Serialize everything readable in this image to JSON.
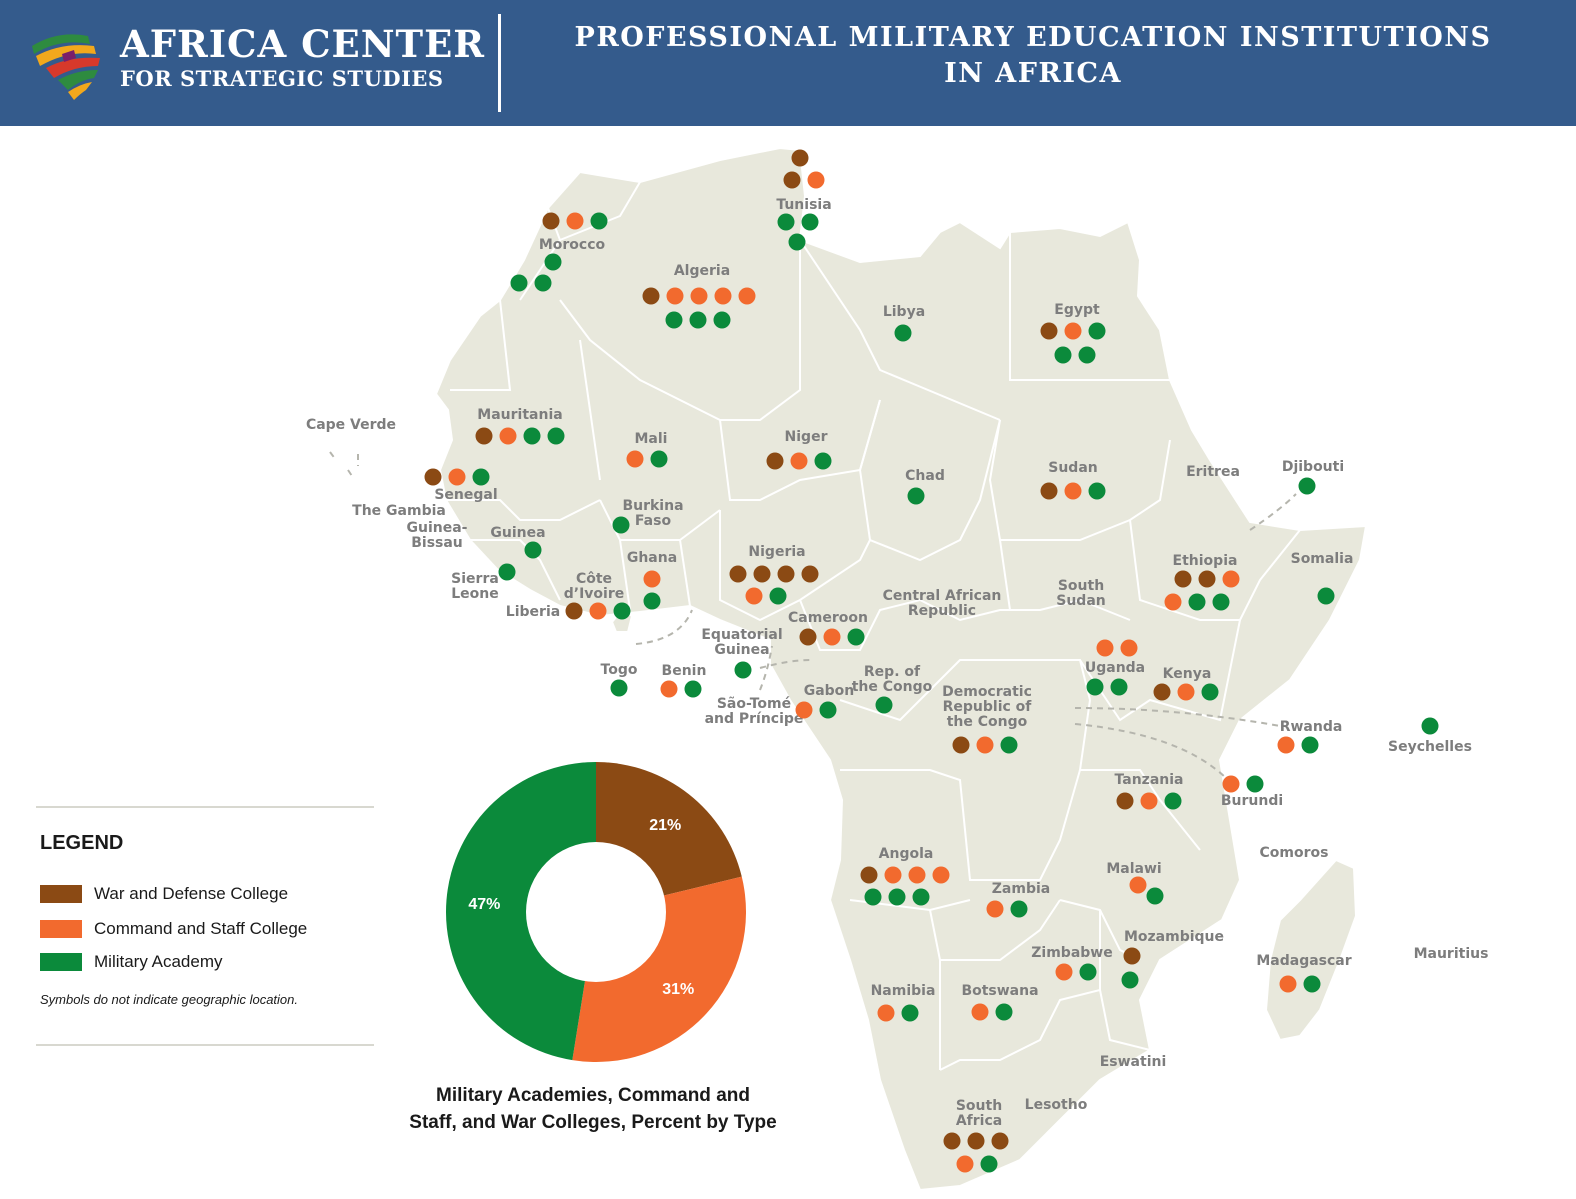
{
  "header": {
    "org_line1": "AFRICA CENTER",
    "org_line2": "FOR STRATEGIC STUDIES",
    "title_line1": "PROFESSIONAL MILITARY EDUCATION INSTITUTIONS",
    "title_line2": "IN AFRICA",
    "logo_icon": "africa-stripes-logo-icon"
  },
  "colors": {
    "header_bg": "#345b8c",
    "land": "#e8e8dc",
    "war_college": "#8b4a14",
    "staff_college": "#f26a2e",
    "academy": "#0b8a3b"
  },
  "legend": {
    "title": "LEGEND",
    "items": [
      {
        "key": "war",
        "label": "War and Defense College",
        "color": "#8b4a14"
      },
      {
        "key": "staff",
        "label": "Command and Staff College",
        "color": "#f26a2e"
      },
      {
        "key": "academy",
        "label": "Military Academy",
        "color": "#0b8a3b"
      }
    ],
    "note": "Symbols do not indicate geographic location."
  },
  "chart_data": {
    "type": "pie",
    "title": "Military Academies, Command and Staff, and War Colleges, Percent by Type",
    "categories": [
      "War and Defense College",
      "Command and Staff College",
      "Military Academy"
    ],
    "values": [
      21,
      31,
      47
    ],
    "labels": [
      "21%",
      "31%",
      "47%"
    ],
    "colors": [
      "#8b4a14",
      "#f26a2e",
      "#0b8a3b"
    ],
    "donut": true
  },
  "donut_caption": {
    "line1": "Military Academies, Command and",
    "line2": "Staff, and War Colleges, Percent by Type"
  },
  "countries": [
    {
      "name": "Tunisia",
      "w": 2,
      "s": 1,
      "a": 3
    },
    {
      "name": "Morocco",
      "w": 1,
      "s": 1,
      "a": 4
    },
    {
      "name": "Algeria",
      "w": 1,
      "s": 4,
      "a": 3
    },
    {
      "name": "Libya",
      "w": 0,
      "s": 0,
      "a": 1
    },
    {
      "name": "Egypt",
      "w": 1,
      "s": 1,
      "a": 3
    },
    {
      "name": "Mauritania",
      "w": 1,
      "s": 1,
      "a": 2
    },
    {
      "name": "Cape Verde",
      "w": 0,
      "s": 0,
      "a": 0
    },
    {
      "name": "Mali",
      "w": 0,
      "s": 1,
      "a": 1
    },
    {
      "name": "Niger",
      "w": 1,
      "s": 1,
      "a": 1
    },
    {
      "name": "Chad",
      "w": 0,
      "s": 0,
      "a": 1
    },
    {
      "name": "Sudan",
      "w": 1,
      "s": 1,
      "a": 1
    },
    {
      "name": "Eritrea",
      "w": 0,
      "s": 0,
      "a": 0
    },
    {
      "name": "Djibouti",
      "w": 0,
      "s": 0,
      "a": 1
    },
    {
      "name": "Senegal",
      "w": 1,
      "s": 1,
      "a": 1
    },
    {
      "name": "The Gambia",
      "w": 0,
      "s": 0,
      "a": 0
    },
    {
      "name": "Guinea-Bissau",
      "w": 0,
      "s": 0,
      "a": 0
    },
    {
      "name": "Guinea",
      "w": 0,
      "s": 0,
      "a": 1
    },
    {
      "name": "Sierra Leone",
      "w": 0,
      "s": 0,
      "a": 1
    },
    {
      "name": "Liberia",
      "w": 0,
      "s": 0,
      "a": 0
    },
    {
      "name": "Burkina Faso",
      "w": 0,
      "s": 0,
      "a": 1
    },
    {
      "name": "Côte d'Ivoire",
      "w": 1,
      "s": 1,
      "a": 1
    },
    {
      "name": "Ghana",
      "w": 0,
      "s": 1,
      "a": 1
    },
    {
      "name": "Togo",
      "w": 0,
      "s": 0,
      "a": 1
    },
    {
      "name": "Benin",
      "w": 0,
      "s": 1,
      "a": 1
    },
    {
      "name": "Nigeria",
      "w": 4,
      "s": 1,
      "a": 1
    },
    {
      "name": "Cameroon",
      "w": 1,
      "s": 1,
      "a": 1
    },
    {
      "name": "Equatorial Guinea",
      "w": 0,
      "s": 0,
      "a": 1
    },
    {
      "name": "São-Tomé and Príncipe",
      "w": 0,
      "s": 0,
      "a": 0
    },
    {
      "name": "Gabon",
      "w": 0,
      "s": 1,
      "a": 1
    },
    {
      "name": "Rep. of the Congo",
      "w": 0,
      "s": 0,
      "a": 1
    },
    {
      "name": "Central African Republic",
      "w": 0,
      "s": 0,
      "a": 0
    },
    {
      "name": "South Sudan",
      "w": 0,
      "s": 0,
      "a": 0
    },
    {
      "name": "Ethiopia",
      "w": 2,
      "s": 2,
      "a": 2
    },
    {
      "name": "Somalia",
      "w": 0,
      "s": 0,
      "a": 1
    },
    {
      "name": "Uganda",
      "w": 0,
      "s": 2,
      "a": 2
    },
    {
      "name": "Kenya",
      "w": 1,
      "s": 1,
      "a": 1
    },
    {
      "name": "Democratic Republic of the Congo",
      "w": 1,
      "s": 1,
      "a": 1
    },
    {
      "name": "Rwanda",
      "w": 0,
      "s": 1,
      "a": 1
    },
    {
      "name": "Burundi",
      "w": 0,
      "s": 1,
      "a": 1
    },
    {
      "name": "Seychelles",
      "w": 0,
      "s": 0,
      "a": 1
    },
    {
      "name": "Tanzania",
      "w": 1,
      "s": 1,
      "a": 1
    },
    {
      "name": "Comoros",
      "w": 0,
      "s": 0,
      "a": 0
    },
    {
      "name": "Angola",
      "w": 1,
      "s": 3,
      "a": 3
    },
    {
      "name": "Zambia",
      "w": 0,
      "s": 1,
      "a": 1
    },
    {
      "name": "Malawi",
      "w": 0,
      "s": 1,
      "a": 1
    },
    {
      "name": "Mozambique",
      "w": 1,
      "s": 0,
      "a": 1
    },
    {
      "name": "Zimbabwe",
      "w": 0,
      "s": 1,
      "a": 1
    },
    {
      "name": "Madagascar",
      "w": 0,
      "s": 1,
      "a": 1
    },
    {
      "name": "Mauritius",
      "w": 0,
      "s": 0,
      "a": 0
    },
    {
      "name": "Namibia",
      "w": 0,
      "s": 1,
      "a": 1
    },
    {
      "name": "Botswana",
      "w": 0,
      "s": 1,
      "a": 1
    },
    {
      "name": "Eswatini",
      "w": 0,
      "s": 0,
      "a": 0
    },
    {
      "name": "Lesotho",
      "w": 0,
      "s": 0,
      "a": 0
    },
    {
      "name": "South Africa",
      "w": 3,
      "s": 1,
      "a": 1
    }
  ]
}
